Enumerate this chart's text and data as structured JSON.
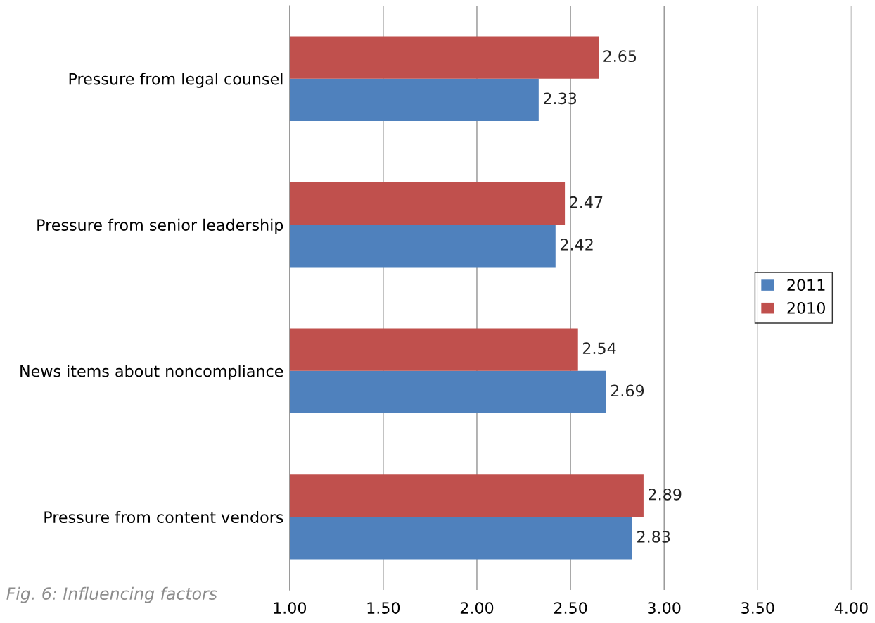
{
  "chart_data": {
    "type": "bar",
    "orientation": "horizontal",
    "categories": [
      "Pressure from legal counsel",
      "Pressure from senior leadership",
      "News items about noncompliance",
      "Pressure from content vendors"
    ],
    "series": [
      {
        "name": "2011",
        "color": "#4f81bd",
        "values": [
          2.33,
          2.42,
          2.69,
          2.83
        ]
      },
      {
        "name": "2010",
        "color": "#c0504d",
        "values": [
          2.65,
          2.47,
          2.54,
          2.89
        ]
      }
    ],
    "xlim": [
      1,
      4
    ],
    "xticks": [
      {
        "value": 1,
        "label": "1.00"
      },
      {
        "value": 1.5,
        "label": "1.50"
      },
      {
        "value": 2,
        "label": "2.00"
      },
      {
        "value": 2.5,
        "label": "2.50"
      },
      {
        "value": 3,
        "label": "3.00"
      },
      {
        "value": 3.5,
        "label": "3.50"
      },
      {
        "value": 4,
        "label": "4.00"
      }
    ],
    "grid": "x",
    "legend": "right",
    "data_labels": true,
    "annotations": [
      "Fig. 6: Influencing factors"
    ]
  }
}
